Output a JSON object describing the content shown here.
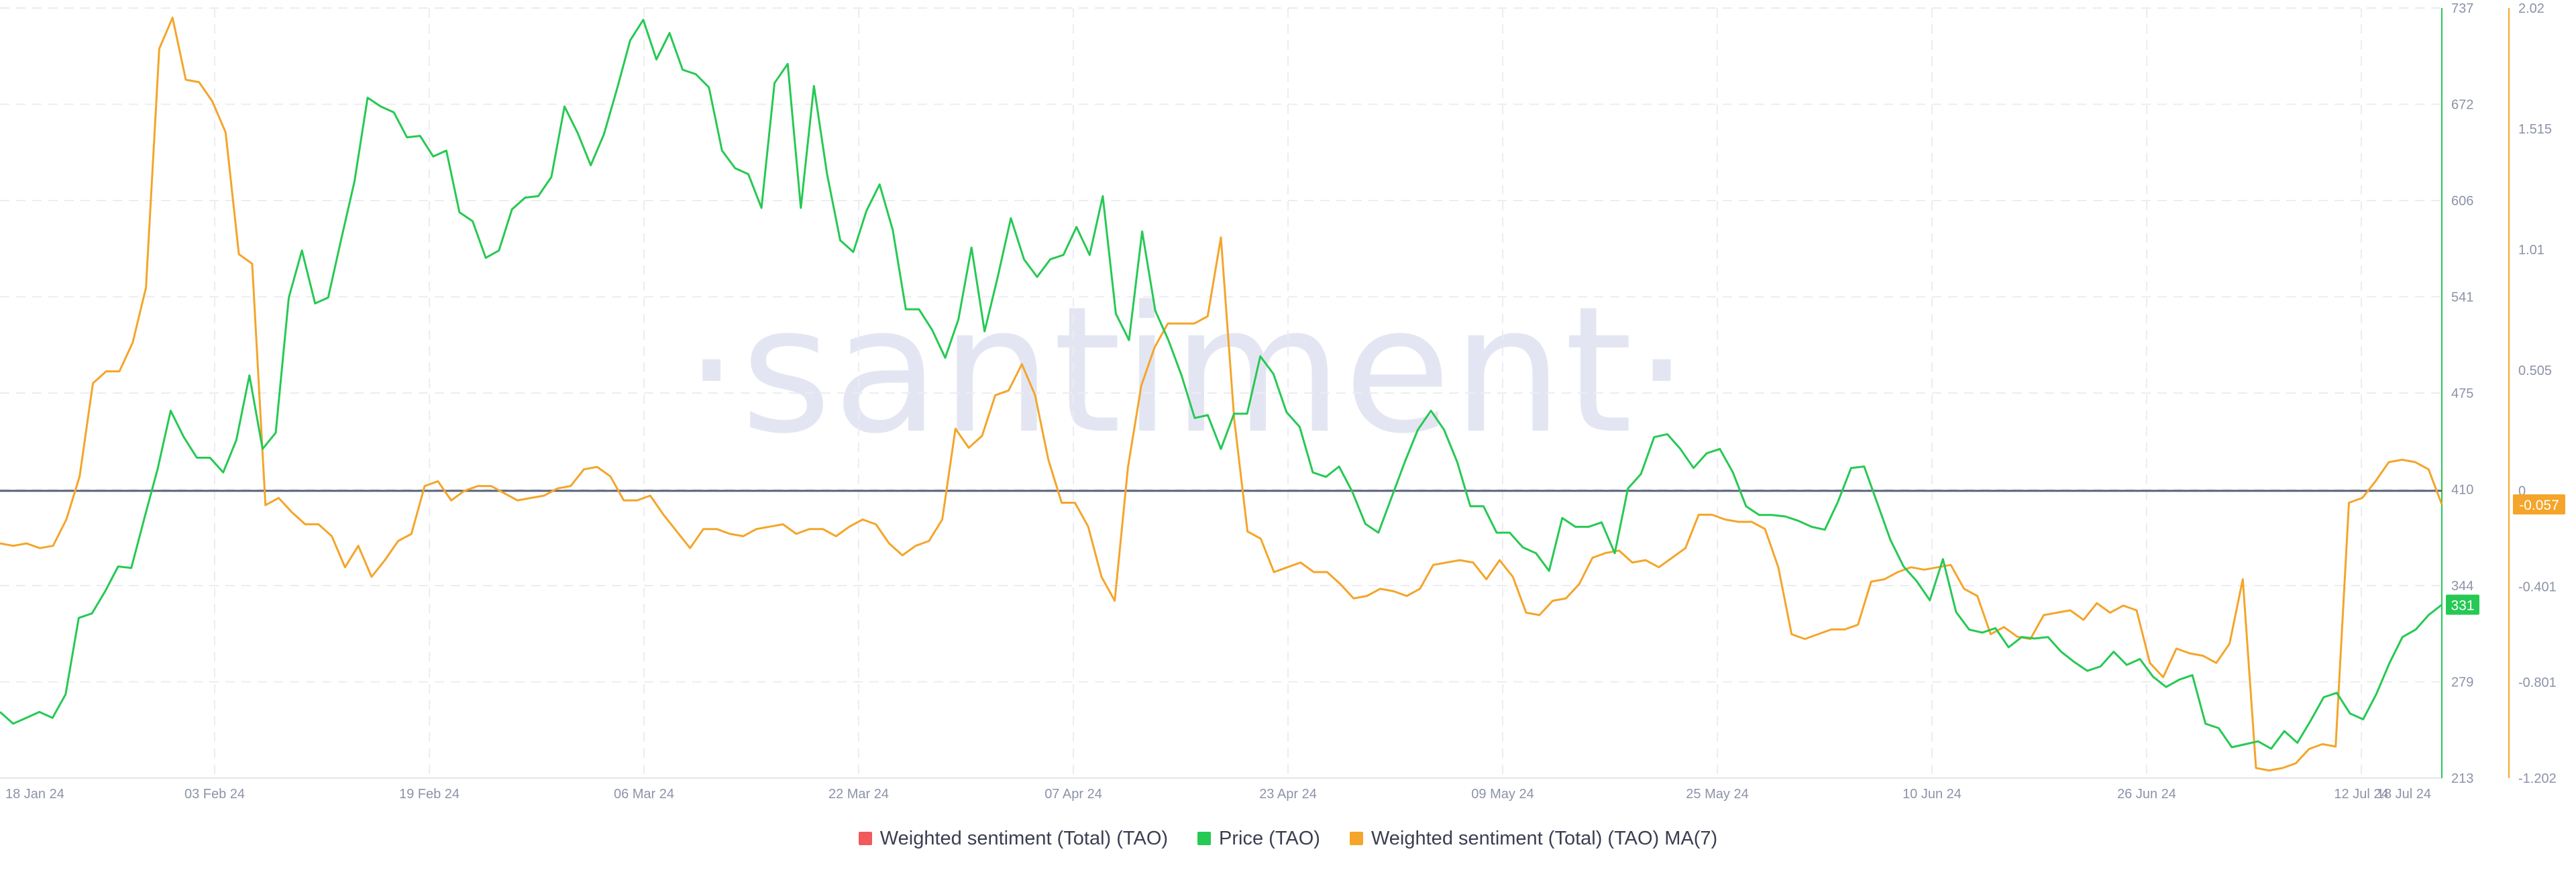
{
  "watermark": "·santiment·",
  "colors": {
    "price": "#26c953",
    "sentiment": "#f4a52a",
    "sentiment_raw": "#f05a5a",
    "zero_line": "#5b6478",
    "grid": "#ececf2"
  },
  "legend": [
    {
      "label": "Weighted sentiment (Total) (TAO)",
      "color": "#f05a5a"
    },
    {
      "label": "Price (TAO)",
      "color": "#26c953"
    },
    {
      "label": "Weighted sentiment (Total) (TAO) MA(7)",
      "color": "#f4a52a"
    }
  ],
  "chart_data": {
    "type": "line",
    "x_ticks": [
      "18 Jan 24",
      "03 Feb 24",
      "19 Feb 24",
      "06 Mar 24",
      "22 Mar 24",
      "07 Apr 24",
      "23 Apr 24",
      "09 May 24",
      "25 May 24",
      "10 Jun 24",
      "26 Jun 24",
      "12 Jul 24",
      "18 Jul 24"
    ],
    "x_tick_days": [
      0,
      16,
      32,
      48,
      64,
      80,
      96,
      112,
      128,
      144,
      160,
      176,
      182
    ],
    "price_axis": {
      "ticks": [
        "737",
        "672",
        "606",
        "541",
        "475",
        "410",
        "344",
        "279",
        "213"
      ],
      "ylim": [
        213,
        737
      ]
    },
    "sentiment_axis": {
      "ticks": [
        "2.02",
        "1.515",
        "1.01",
        "0.505",
        "0",
        "-0.401",
        "-0.801",
        "-1.202"
      ],
      "ylim": [
        -1.202,
        2.02
      ]
    },
    "last_values": {
      "price": "331",
      "sentiment_ma7": "-0.057"
    },
    "series": [
      {
        "name": "Price (TAO)",
        "axis": "price",
        "values": [
          258,
          250,
          254,
          258,
          254,
          270,
          322,
          325,
          340,
          357,
          356,
          390,
          423,
          463,
          445,
          431,
          431,
          421,
          443,
          487,
          437,
          448,
          540,
          572,
          536,
          540,
          580,
          619,
          676,
          670,
          666,
          649,
          650,
          636,
          640,
          598,
          592,
          567,
          572,
          600,
          608,
          609,
          622,
          670,
          652,
          630,
          651,
          682,
          715,
          729,
          702,
          720,
          695,
          692,
          683,
          640,
          628,
          624,
          601,
          686,
          699,
          601,
          684,
          624,
          579,
          571,
          599,
          617,
          586,
          532,
          532,
          518,
          499,
          525,
          574,
          517,
          554,
          594,
          566,
          554,
          566,
          569,
          588,
          569,
          609,
          529,
          511,
          585,
          531,
          511,
          487,
          458,
          460,
          437,
          461,
          461,
          500,
          488,
          462,
          452,
          421,
          418,
          425,
          408,
          386,
          380,
          404,
          428,
          450,
          463,
          450,
          428,
          398,
          398,
          380,
          380,
          370,
          366,
          354,
          390,
          384,
          384,
          387,
          366,
          410,
          420,
          445,
          447,
          437,
          424,
          434,
          437,
          421,
          398,
          392,
          392,
          391,
          388,
          384,
          382,
          401,
          424,
          425,
          400,
          375,
          357,
          347,
          334,
          362,
          326,
          314,
          312,
          315,
          302,
          309,
          308,
          309,
          299,
          292,
          286,
          289,
          299,
          290,
          294,
          282,
          275,
          280,
          283,
          250,
          247,
          234,
          236,
          238,
          233,
          245,
          237,
          252,
          268,
          271,
          257,
          253,
          270,
          291,
          309,
          314,
          324,
          331
        ]
      },
      {
        "name": "Weighted sentiment (Total) (TAO) MA(7)",
        "axis": "sentiment",
        "values": [
          -0.22,
          -0.23,
          -0.22,
          -0.24,
          -0.23,
          -0.12,
          0.06,
          0.45,
          0.5,
          0.5,
          0.62,
          0.85,
          1.85,
          1.98,
          1.72,
          1.71,
          1.63,
          1.5,
          0.99,
          0.95,
          -0.06,
          -0.03,
          -0.09,
          -0.14,
          -0.14,
          -0.19,
          -0.32,
          -0.23,
          -0.36,
          -0.29,
          -0.21,
          -0.18,
          0.02,
          0.04,
          -0.04,
          0.0,
          0.02,
          0.02,
          -0.01,
          -0.04,
          -0.03,
          -0.02,
          0.01,
          0.02,
          0.09,
          0.1,
          0.06,
          -0.04,
          -0.04,
          -0.02,
          -0.1,
          -0.17,
          -0.24,
          -0.16,
          -0.16,
          -0.18,
          -0.19,
          -0.16,
          -0.15,
          -0.14,
          -0.18,
          -0.16,
          -0.16,
          -0.19,
          -0.15,
          -0.12,
          -0.14,
          -0.22,
          -0.27,
          -0.23,
          -0.21,
          -0.12,
          0.26,
          0.18,
          0.23,
          0.4,
          0.42,
          0.53,
          0.4,
          0.13,
          -0.05,
          -0.05,
          -0.15,
          -0.36,
          -0.46,
          0.1,
          0.44,
          0.6,
          0.7,
          0.7,
          0.7,
          0.73,
          1.06,
          0.3,
          -0.17,
          -0.2,
          -0.34,
          -0.32,
          -0.3,
          -0.34,
          -0.34,
          -0.39,
          -0.45,
          -0.44,
          -0.41,
          -0.42,
          -0.44,
          -0.41,
          -0.31,
          -0.3,
          -0.29,
          -0.3,
          -0.37,
          -0.29,
          -0.36,
          -0.51,
          -0.52,
          -0.46,
          -0.45,
          -0.39,
          -0.28,
          -0.26,
          -0.25,
          -0.3,
          -0.29,
          -0.32,
          -0.28,
          -0.24,
          -0.1,
          -0.1,
          -0.12,
          -0.13,
          -0.13,
          -0.16,
          -0.32,
          -0.6,
          -0.62,
          -0.6,
          -0.58,
          -0.58,
          -0.56,
          -0.38,
          -0.37,
          -0.34,
          -0.32,
          -0.33,
          -0.32,
          -0.31,
          -0.41,
          -0.44,
          -0.6,
          -0.57,
          -0.61,
          -0.62,
          -0.52,
          -0.51,
          -0.5,
          -0.54,
          -0.47,
          -0.51,
          -0.48,
          -0.5,
          -0.72,
          -0.78,
          -0.66,
          -0.68,
          -0.69,
          -0.72,
          -0.64,
          -0.37,
          -1.16,
          -1.17,
          -1.16,
          -1.14,
          -1.08,
          -1.06,
          -1.07,
          -0.05,
          -0.03,
          0.04,
          0.12,
          0.13,
          0.12,
          0.09,
          -0.057
        ]
      }
    ]
  }
}
